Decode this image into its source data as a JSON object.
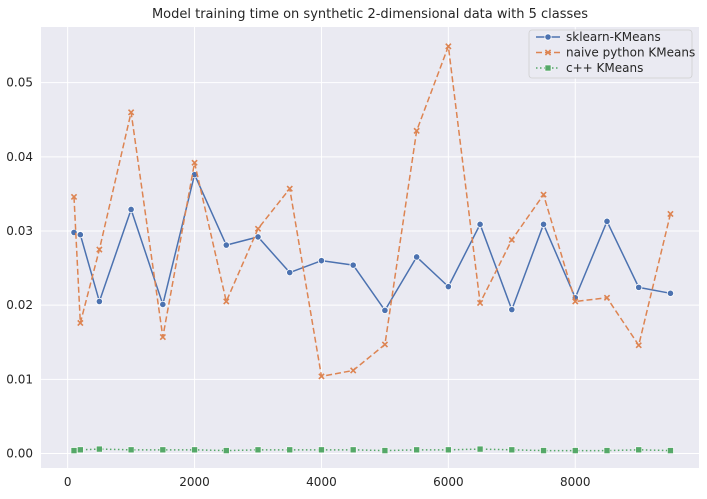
{
  "chart_data": {
    "type": "line",
    "title": "Model training time on synthetic 2-dimensional data with 5 classes",
    "xlabel": "",
    "ylabel": "",
    "xlim": [
      -420,
      9950
    ],
    "ylim": [
      -0.00195,
      0.0575
    ],
    "x_ticks": [
      0,
      2000,
      4000,
      6000,
      8000
    ],
    "y_ticks": [
      0.0,
      0.01,
      0.02,
      0.03,
      0.04,
      0.05
    ],
    "y_tick_labels": [
      "0.00",
      "0.01",
      "0.02",
      "0.03",
      "0.04",
      "0.05"
    ],
    "grid": true,
    "legend_position": "top-right",
    "x": [
      100,
      200,
      500,
      1000,
      1500,
      2000,
      2500,
      3000,
      3500,
      4000,
      4500,
      5000,
      5500,
      6000,
      6500,
      7000,
      7500,
      8000,
      8500,
      9000,
      9500
    ],
    "series": [
      {
        "name": "sklearn-KMeans",
        "color": "#4c72b0",
        "marker": "circle",
        "line_style": "solid",
        "values": [
          0.0298,
          0.0295,
          0.0205,
          0.0329,
          0.0201,
          0.0376,
          0.0281,
          0.0292,
          0.0244,
          0.026,
          0.0254,
          0.0193,
          0.0265,
          0.0225,
          0.0309,
          0.0194,
          0.0309,
          0.021,
          0.0313,
          0.0224,
          0.0216
        ]
      },
      {
        "name": "naive python KMeans",
        "color": "#dd8452",
        "marker": "x",
        "line_style": "dashed",
        "values": [
          0.0346,
          0.0176,
          0.0275,
          0.046,
          0.0157,
          0.0392,
          0.0205,
          0.0303,
          0.0357,
          0.0104,
          0.0112,
          0.0147,
          0.0435,
          0.0549,
          0.0203,
          0.0288,
          0.0349,
          0.0205,
          0.021,
          0.0146,
          0.0323
        ]
      },
      {
        "name": "c++ KMeans",
        "color": "#55a868",
        "marker": "square",
        "line_style": "dotted",
        "values": [
          0.0004,
          0.0005,
          0.0006,
          0.0005,
          0.0005,
          0.0005,
          0.0004,
          0.0005,
          0.0005,
          0.0005,
          0.0005,
          0.0004,
          0.0005,
          0.0005,
          0.0006,
          0.0005,
          0.0004,
          0.0004,
          0.0004,
          0.0005,
          0.0004
        ]
      }
    ]
  }
}
